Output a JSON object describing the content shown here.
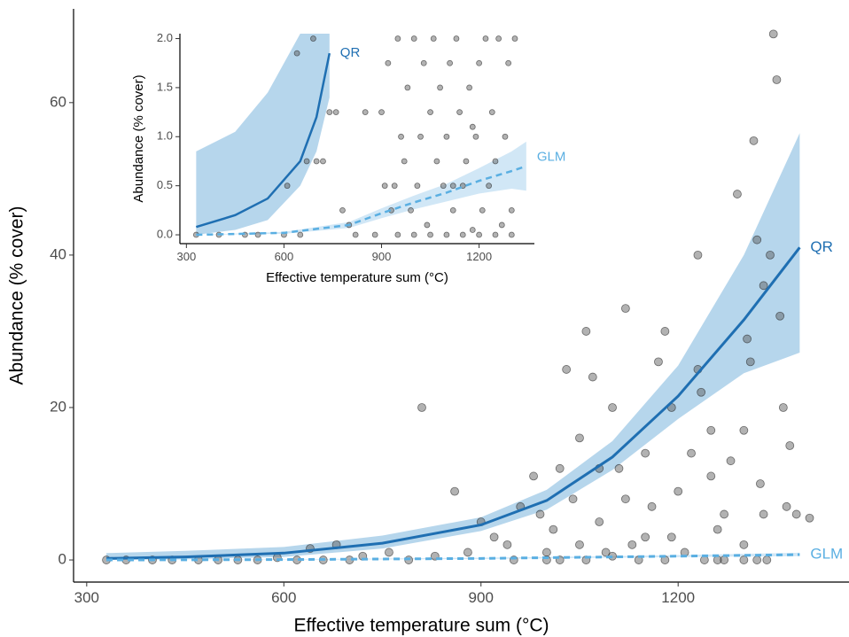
{
  "chart_data": [
    {
      "type": "scatter",
      "x_label": "Effective temperature sum (°C)",
      "y_label": "Abundance (% cover)",
      "xlim": [
        280,
        1460
      ],
      "ylim": [
        -2.9,
        72.3
      ],
      "xticks": [
        300,
        600,
        900,
        1200
      ],
      "yticks": [
        0,
        20,
        40,
        60
      ],
      "point_color": "#555555",
      "x": [
        330,
        360,
        400,
        430,
        470,
        500,
        530,
        560,
        590,
        620,
        640,
        660,
        680,
        700,
        720,
        760,
        790,
        810,
        830,
        860,
        880,
        900,
        920,
        940,
        950,
        960,
        980,
        1000,
        1010,
        1020,
        1030,
        1040,
        1050,
        1060,
        1070,
        1080,
        1090,
        1100,
        1110,
        1120,
        1130,
        1140,
        1150,
        1160,
        1170,
        1180,
        1190,
        1200,
        1210,
        1220,
        1230,
        1235,
        1240,
        1250,
        1260,
        1270,
        1280,
        1290,
        1300,
        1305,
        1310,
        1315,
        1320,
        1325,
        1330,
        1335,
        1340,
        1345,
        1350,
        1355,
        1360,
        1365,
        1370,
        1380,
        1400,
        1100,
        1150,
        1050,
        1000,
        1250,
        1270,
        1190,
        1120,
        1080,
        990,
        1230,
        1330,
        1300,
        1020,
        1060,
        1180,
        1260,
        1300,
        1320
      ],
      "values": [
        0,
        0,
        0,
        0,
        0,
        0,
        0,
        0,
        0.3,
        0,
        1.5,
        0,
        2,
        0,
        0.5,
        1,
        0,
        20,
        0.5,
        9,
        1,
        5,
        3,
        2,
        0,
        7,
        11,
        0,
        4,
        12,
        25,
        8,
        16,
        30,
        24,
        5,
        1,
        20,
        12,
        33,
        2,
        0,
        14,
        7,
        26,
        30,
        3,
        9,
        1,
        14,
        40,
        22,
        0,
        17,
        4,
        6,
        13,
        48,
        2,
        29,
        26,
        55,
        42,
        10,
        36,
        0,
        40,
        69,
        63,
        32,
        20,
        7,
        15,
        6,
        5.5,
        0.5,
        3,
        2,
        1,
        11,
        0,
        20,
        8,
        12,
        6,
        25,
        6,
        17,
        0,
        0,
        0,
        0,
        0,
        0
      ],
      "fits": [
        {
          "name": "QR",
          "color": "#1f6fb2",
          "band_color": "#a9cfe9",
          "dashed": false,
          "x": [
            330,
            450,
            600,
            750,
            900,
            1000,
            1100,
            1200,
            1300,
            1385
          ],
          "values": [
            0.2,
            0.4,
            0.9,
            2.2,
            4.6,
            7.8,
            13.5,
            21.5,
            31.5,
            41
          ],
          "lower": [
            0,
            0.1,
            0.4,
            1.5,
            3.8,
            6.6,
            11.8,
            18.5,
            24.5,
            27.2
          ],
          "upper": [
            0.9,
            1.2,
            1.7,
            3.2,
            5.6,
            9.2,
            15.6,
            25.5,
            40,
            56
          ]
        },
        {
          "name": "GLM",
          "color": "#5aafe2",
          "band_color": "#c9e3f4",
          "dashed": true,
          "x": [
            330,
            600,
            900,
            1100,
            1300,
            1385
          ],
          "values": [
            0,
            0.05,
            0.2,
            0.4,
            0.6,
            0.7
          ],
          "lower": [
            0,
            0.02,
            0.12,
            0.3,
            0.45,
            0.5
          ],
          "upper": [
            0,
            0.08,
            0.3,
            0.5,
            0.8,
            0.95
          ]
        }
      ]
    },
    {
      "type": "scatter",
      "x_label": "Effective temperature sum (°C)",
      "y_label": "Abundance (% cover)",
      "xlim": [
        280,
        1370
      ],
      "ylim": [
        -0.09,
        2.05
      ],
      "xticks": [
        300,
        600,
        900,
        1200
      ],
      "yticks": [
        {
          "value": 0,
          "label": "0.0"
        },
        0.5,
        {
          "value": 1,
          "label": "1.0"
        },
        1.5,
        {
          "value": 2,
          "label": "2.0"
        }
      ],
      "point_color": "#555555",
      "x": [
        330,
        400,
        480,
        520,
        600,
        610,
        640,
        650,
        670,
        690,
        700,
        720,
        740,
        760,
        780,
        800,
        820,
        850,
        880,
        900,
        910,
        920,
        930,
        940,
        950,
        960,
        970,
        980,
        990,
        1000,
        1010,
        1020,
        1030,
        1040,
        1050,
        1060,
        1070,
        1080,
        1090,
        1100,
        1110,
        1120,
        1130,
        1140,
        1150,
        1160,
        1170,
        1180,
        1190,
        1200,
        1210,
        1220,
        1230,
        1240,
        1250,
        1260,
        1270,
        1280,
        1290,
        1300,
        1310,
        1000,
        1050,
        1100,
        1150,
        1200,
        1250,
        1300,
        950,
        1120,
        1180
      ],
      "values": [
        0,
        0,
        0,
        0,
        0,
        0.5,
        1.85,
        0,
        0.75,
        2,
        0.75,
        0.75,
        1.25,
        1.25,
        0.25,
        0.1,
        0,
        1.25,
        0,
        1.25,
        0.5,
        1.75,
        0.25,
        0.5,
        2,
        1,
        0.75,
        1.5,
        0.25,
        2,
        0.5,
        1,
        1.75,
        0.1,
        1.25,
        2,
        0.75,
        1.5,
        0.5,
        1,
        1.75,
        0.25,
        2,
        1.25,
        0.5,
        0.75,
        1.5,
        0.05,
        1,
        1.75,
        0.25,
        2,
        0.5,
        1.25,
        0.75,
        2,
        0.1,
        1,
        1.75,
        0.25,
        2,
        0,
        0,
        0,
        0,
        0,
        0,
        0,
        0,
        0.5,
        1.1
      ],
      "fits": [
        {
          "name": "QR",
          "color": "#1f6fb2",
          "band_color": "#a9cfe9",
          "dashed": false,
          "x": [
            330,
            450,
            550,
            650,
            700,
            740
          ],
          "values": [
            0.08,
            0.2,
            0.37,
            0.75,
            1.2,
            1.85
          ],
          "lower": [
            0,
            0.05,
            0.15,
            0.5,
            0.85,
            1.4
          ],
          "upper": [
            0.85,
            1.05,
            1.45,
            2.05,
            2.7,
            3.5
          ]
        },
        {
          "name": "GLM",
          "color": "#5aafe2",
          "band_color": "#c9e3f4",
          "dashed": true,
          "x": [
            330,
            600,
            800,
            900,
            1000,
            1100,
            1200,
            1300,
            1345
          ],
          "values": [
            0,
            0.02,
            0.1,
            0.22,
            0.33,
            0.43,
            0.55,
            0.65,
            0.7
          ],
          "lower": [
            0,
            0.01,
            0.07,
            0.17,
            0.26,
            0.34,
            0.42,
            0.47,
            0.45
          ],
          "upper": [
            0,
            0.03,
            0.13,
            0.27,
            0.4,
            0.52,
            0.68,
            0.85,
            0.95
          ]
        }
      ]
    }
  ]
}
